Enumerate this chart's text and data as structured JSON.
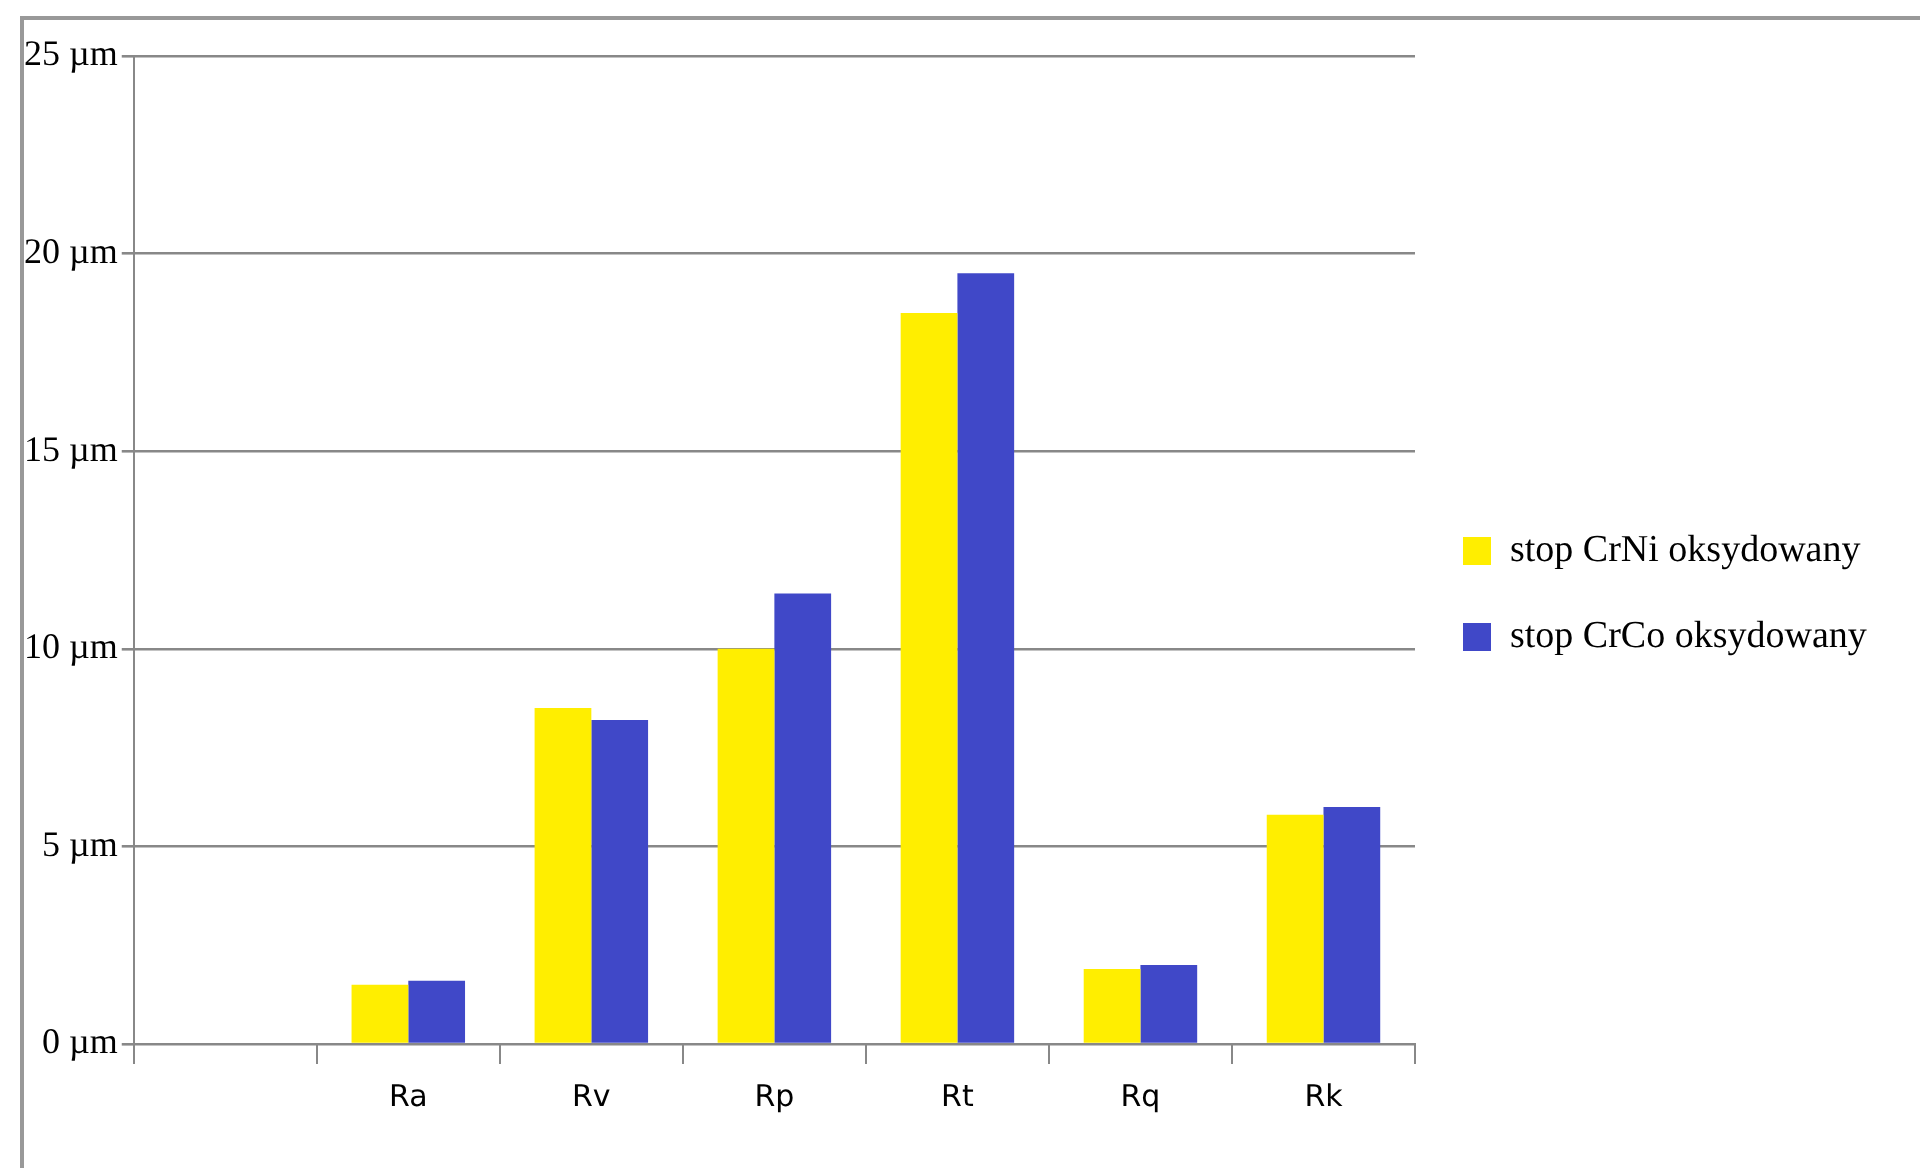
{
  "chart_data": {
    "type": "bar",
    "categories": [
      null,
      "Ra",
      "Rv",
      "Rp",
      "Rt",
      "Rq",
      "Rk"
    ],
    "series": [
      {
        "name": "stop CrNi oksydowany",
        "color": "#ffee00",
        "values": [
          null,
          1.5,
          8.5,
          10.0,
          18.5,
          1.9,
          5.8
        ]
      },
      {
        "name": "stop CrCo oksydowany",
        "color": "#4048c8",
        "values": [
          null,
          1.6,
          8.2,
          11.4,
          19.5,
          2.0,
          6.0
        ]
      }
    ],
    "ylim": [
      0,
      25
    ],
    "yticks": [
      {
        "value": 0,
        "label": "0 µm"
      },
      {
        "value": 5,
        "label": "5 µm"
      },
      {
        "value": 10,
        "label": "10 µm"
      },
      {
        "value": 15,
        "label": "15 µm"
      },
      {
        "value": 20,
        "label": "20 µm"
      },
      {
        "value": 25,
        "label": "25 µm"
      }
    ],
    "grid": "y",
    "legend": "right"
  }
}
